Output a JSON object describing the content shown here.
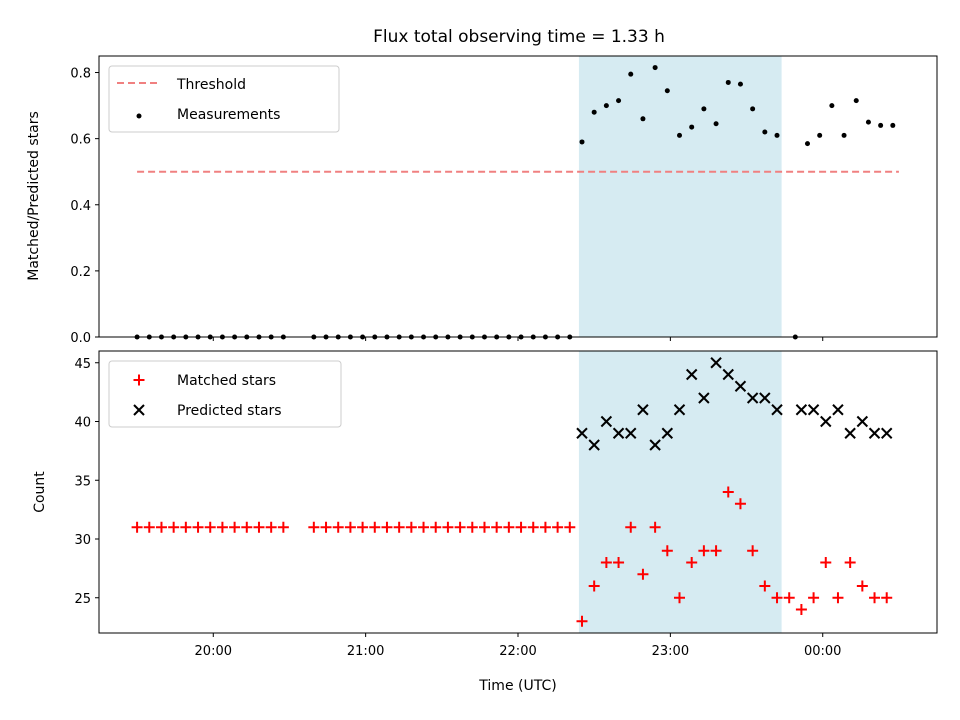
{
  "title": "Flux total observing time = 1.33 h",
  "xlabel": "Time (UTC)",
  "x_tick_labels": [
    "20:00",
    "21:00",
    "22:00",
    "23:00",
    "00:00"
  ],
  "colors": {
    "threshold": "#f08080",
    "measurements": "#000000",
    "matched": "#ff0000",
    "predicted": "#000000",
    "shade": "#add8e6"
  },
  "chart_data": [
    {
      "type": "scatter",
      "ylabel": "Matched/Predicted stars",
      "x_unit": "hours UTC",
      "xlim": [
        19.25,
        24.75
      ],
      "ylim": [
        0,
        0.85
      ],
      "yticks": [
        "0.0",
        "0.2",
        "0.4",
        "0.6",
        "0.8"
      ],
      "legend_position": "upper-left",
      "shaded_interval": [
        22.4,
        23.73
      ],
      "threshold": {
        "name": "Threshold",
        "y": 0.5,
        "x_range": [
          19.5,
          24.5
        ]
      },
      "series": [
        {
          "name": "Measurements",
          "x": [
            19.5,
            19.58,
            19.66,
            19.74,
            19.82,
            19.9,
            19.98,
            20.06,
            20.14,
            20.22,
            20.3,
            20.38,
            20.46,
            20.66,
            20.74,
            20.82,
            20.9,
            20.98,
            21.06,
            21.14,
            21.22,
            21.3,
            21.38,
            21.46,
            21.54,
            21.62,
            21.7,
            21.78,
            21.86,
            21.94,
            22.02,
            22.1,
            22.18,
            22.26,
            22.34,
            22.42,
            22.5,
            22.58,
            22.66,
            22.74,
            22.82,
            22.9,
            22.98,
            23.06,
            23.14,
            23.22,
            23.3,
            23.38,
            23.46,
            23.54,
            23.62,
            23.7,
            23.82,
            23.9,
            23.98,
            24.06,
            24.14,
            24.22,
            24.3,
            24.38,
            24.46
          ],
          "y": [
            0,
            0,
            0,
            0,
            0,
            0,
            0,
            0,
            0,
            0,
            0,
            0,
            0,
            0,
            0,
            0,
            0,
            0,
            0,
            0,
            0,
            0,
            0,
            0,
            0,
            0,
            0,
            0,
            0,
            0,
            0,
            0,
            0,
            0,
            0,
            0.59,
            0.68,
            0.7,
            0.715,
            0.795,
            0.66,
            0.815,
            0.745,
            0.61,
            0.635,
            0.69,
            0.645,
            0.77,
            0.765,
            0.69,
            0.62,
            0.61,
            0,
            0.585,
            0.61,
            0.7,
            0.61,
            0.715,
            0.65,
            0.64,
            0.64
          ]
        }
      ]
    },
    {
      "type": "scatter",
      "ylabel": "Count",
      "x_unit": "hours UTC",
      "xlim": [
        19.25,
        24.75
      ],
      "ylim": [
        22,
        46
      ],
      "yticks": [
        "25",
        "30",
        "35",
        "40",
        "45"
      ],
      "legend_position": "upper-left",
      "shaded_interval": [
        22.4,
        23.73
      ],
      "series": [
        {
          "name": "Matched stars",
          "marker": "plus",
          "x": [
            19.5,
            19.58,
            19.66,
            19.74,
            19.82,
            19.9,
            19.98,
            20.06,
            20.14,
            20.22,
            20.3,
            20.38,
            20.46,
            20.66,
            20.74,
            20.82,
            20.9,
            20.98,
            21.06,
            21.14,
            21.22,
            21.3,
            21.38,
            21.46,
            21.54,
            21.62,
            21.7,
            21.78,
            21.86,
            21.94,
            22.02,
            22.1,
            22.18,
            22.26,
            22.34,
            22.42,
            22.5,
            22.58,
            22.66,
            22.74,
            22.82,
            22.9,
            22.98,
            23.06,
            23.14,
            23.22,
            23.3,
            23.38,
            23.46,
            23.54,
            23.62,
            23.7,
            23.78,
            23.86,
            23.94,
            24.02,
            24.1,
            24.18,
            24.26,
            24.34,
            24.42
          ],
          "y": [
            31,
            31,
            31,
            31,
            31,
            31,
            31,
            31,
            31,
            31,
            31,
            31,
            31,
            31,
            31,
            31,
            31,
            31,
            31,
            31,
            31,
            31,
            31,
            31,
            31,
            31,
            31,
            31,
            31,
            31,
            31,
            31,
            31,
            31,
            31,
            23,
            26,
            28,
            28,
            31,
            27,
            31,
            29,
            25,
            28,
            29,
            29,
            34,
            33,
            29,
            26,
            25,
            25,
            24,
            25,
            28,
            25,
            28,
            26,
            25,
            25
          ]
        },
        {
          "name": "Predicted stars",
          "marker": "x",
          "x": [
            22.42,
            22.5,
            22.58,
            22.66,
            22.74,
            22.82,
            22.9,
            22.98,
            23.06,
            23.14,
            23.22,
            23.3,
            23.38,
            23.46,
            23.54,
            23.62,
            23.7,
            23.86,
            23.94,
            24.02,
            24.1,
            24.18,
            24.26,
            24.34,
            24.42
          ],
          "y": [
            39,
            38,
            40,
            39,
            39,
            41,
            38,
            39,
            41,
            44,
            42,
            45,
            44,
            43,
            42,
            42,
            41,
            41,
            41,
            40,
            41,
            39,
            40,
            39,
            39
          ]
        }
      ]
    }
  ]
}
